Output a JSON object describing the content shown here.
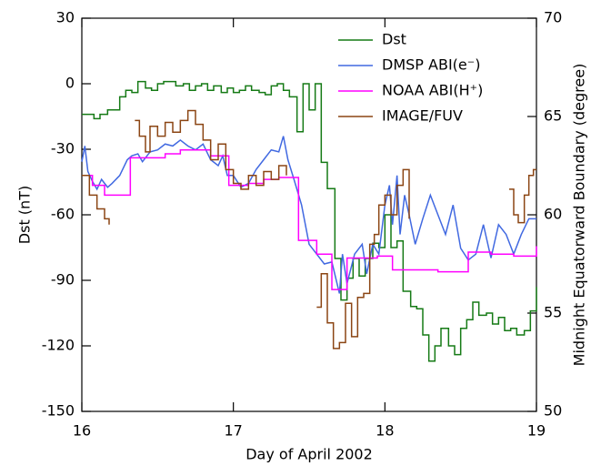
{
  "chart_data": {
    "type": "line",
    "x_label": "Day of April 2002",
    "y_label": "Dst (nT)",
    "y2_label": "Midnight Equatorward Boundary (degree)",
    "xlim": [
      16,
      19
    ],
    "xticks": [
      16,
      17,
      18,
      19
    ],
    "ylim": [
      -150,
      30
    ],
    "yticks": [
      -150,
      -120,
      -90,
      -60,
      -30,
      0,
      30
    ],
    "y2lim": [
      50,
      70
    ],
    "y2ticks": [
      50,
      55,
      60,
      65,
      70
    ],
    "legend": "upper right",
    "series": [
      {
        "name": "Dst",
        "color": "#157a15",
        "axis": "y",
        "step": true,
        "x": [
          16.0,
          16.08,
          16.12,
          16.17,
          16.21,
          16.25,
          16.29,
          16.33,
          16.37,
          16.42,
          16.46,
          16.5,
          16.54,
          16.58,
          16.62,
          16.67,
          16.71,
          16.75,
          16.79,
          16.83,
          16.87,
          16.92,
          16.96,
          17.0,
          17.04,
          17.08,
          17.12,
          17.17,
          17.21,
          17.25,
          17.29,
          17.33,
          17.37,
          17.42,
          17.46,
          17.5,
          17.54,
          17.58,
          17.62,
          17.67,
          17.71,
          17.75,
          17.79,
          17.83,
          17.87,
          17.92,
          17.96,
          18.0,
          18.04,
          18.08,
          18.12,
          18.17,
          18.21,
          18.25,
          18.29,
          18.33,
          18.37,
          18.42,
          18.46,
          18.5,
          18.54,
          18.58,
          18.62,
          18.67,
          18.71,
          18.75,
          18.79,
          18.83,
          18.87,
          18.92,
          18.96,
          19.0
        ],
        "values": [
          -14,
          -16,
          -14,
          -12,
          -12,
          -6,
          -3,
          -4,
          1,
          -2,
          -3,
          0,
          1,
          1,
          -1,
          0,
          -3,
          -1,
          0,
          -3,
          -1,
          -4,
          -2,
          -4,
          -3,
          -1,
          -3,
          -4,
          -5,
          -1,
          0,
          -3,
          -6,
          -22,
          0,
          -12,
          0,
          -36,
          -48,
          -80,
          -99,
          -89,
          -80,
          -88,
          -80,
          -73,
          -75,
          -60,
          -75,
          -72,
          -95,
          -102,
          -103,
          -115,
          -127,
          -120,
          -112,
          -120,
          -124,
          -112,
          -108,
          -100,
          -106,
          -105,
          -110,
          -107,
          -113,
          -112,
          -115,
          -113,
          -104,
          -93
        ]
      },
      {
        "name": "DMSP ABI(e⁻)",
        "color": "#4169e1",
        "axis": "y2",
        "step": false,
        "x": [
          16.0,
          16.02,
          16.04,
          16.07,
          16.1,
          16.13,
          16.17,
          16.2,
          16.25,
          16.3,
          16.33,
          16.37,
          16.4,
          16.45,
          16.5,
          16.55,
          16.6,
          16.65,
          16.7,
          16.75,
          16.8,
          16.85,
          16.9,
          16.93,
          16.96,
          17.0,
          17.05,
          17.1,
          17.15,
          17.2,
          17.25,
          17.3,
          17.33,
          17.36,
          17.4,
          17.45,
          17.5,
          17.55,
          17.6,
          17.65,
          17.7,
          17.72,
          17.75,
          17.8,
          17.85,
          17.88,
          17.92,
          17.96,
          18.0,
          18.03,
          18.05,
          18.08,
          18.1,
          18.13,
          18.16,
          18.2,
          18.25,
          18.3,
          18.35,
          18.4,
          18.45,
          18.5,
          18.55,
          18.6,
          18.65,
          18.7,
          18.75,
          18.8,
          18.85,
          18.9,
          18.95,
          19.0
        ],
        "values": [
          62.7,
          63.5,
          62.2,
          61.7,
          61.3,
          61.8,
          61.4,
          61.6,
          62.0,
          62.8,
          63.0,
          63.1,
          62.7,
          63.2,
          63.3,
          63.6,
          63.5,
          63.8,
          63.5,
          63.3,
          63.6,
          62.8,
          62.5,
          63.0,
          62.0,
          62.0,
          61.4,
          61.6,
          62.3,
          62.8,
          63.3,
          63.2,
          64.0,
          62.8,
          61.8,
          60.5,
          58.5,
          58.0,
          57.5,
          57.6,
          56.0,
          58.0,
          56.5,
          58.0,
          58.5,
          57.0,
          58.5,
          58.0,
          60.5,
          61.5,
          59.5,
          62.0,
          59.0,
          61.0,
          60.0,
          58.5,
          59.8,
          61.0,
          60.0,
          59.0,
          60.5,
          58.3,
          57.7,
          58.0,
          59.5,
          57.8,
          59.5,
          59.0,
          58.0,
          59.0,
          59.8,
          59.8
        ]
      },
      {
        "name": "NOAA ABI(H⁺)",
        "color": "#ff00ff",
        "axis": "y2",
        "step": true,
        "x": [
          16.0,
          16.07,
          16.15,
          16.32,
          16.55,
          16.65,
          16.85,
          16.97,
          17.1,
          17.2,
          17.3,
          17.43,
          17.55,
          17.65,
          17.75,
          17.95,
          18.05,
          18.25,
          18.35,
          18.55,
          18.7,
          18.85,
          19.0
        ],
        "values": [
          62.0,
          61.5,
          61.0,
          62.9,
          63.1,
          63.3,
          63.0,
          61.5,
          61.6,
          61.8,
          61.9,
          58.7,
          58.0,
          56.2,
          57.8,
          57.9,
          57.2,
          57.2,
          57.1,
          58.1,
          58.0,
          57.9,
          58.4
        ]
      },
      {
        "name": "IMAGE/FUV",
        "color": "#8b4513",
        "axis": "y2",
        "step": true,
        "x": [
          16.0,
          16.05,
          16.1,
          16.15,
          16.18,
          16.2,
          16.35,
          16.38,
          16.42,
          16.45,
          16.5,
          16.55,
          16.6,
          16.65,
          16.7,
          16.75,
          16.8,
          16.85,
          16.9,
          16.95,
          17.0,
          17.05,
          17.1,
          17.15,
          17.2,
          17.25,
          17.3,
          17.35,
          17.38,
          17.55,
          17.58,
          17.62,
          17.66,
          17.7,
          17.74,
          17.78,
          17.82,
          17.86,
          17.9,
          17.93,
          17.96,
          18.0,
          18.04,
          18.08,
          18.12,
          18.16,
          18.2,
          18.82,
          18.85,
          18.88,
          18.92,
          18.95,
          18.98,
          19.0
        ],
        "values": [
          62.0,
          61.0,
          60.3,
          59.8,
          59.5,
          null,
          64.8,
          64.0,
          63.2,
          64.5,
          64.0,
          64.7,
          64.2,
          64.8,
          65.3,
          64.6,
          63.8,
          62.8,
          63.6,
          62.3,
          61.6,
          61.3,
          62.0,
          61.5,
          62.2,
          61.8,
          62.5,
          62.0,
          null,
          55.3,
          57.0,
          54.5,
          53.2,
          53.5,
          55.5,
          53.8,
          55.8,
          56.0,
          58.5,
          59.0,
          60.5,
          61.0,
          60.0,
          61.5,
          62.3,
          59.8,
          null,
          61.3,
          60.0,
          59.6,
          61.0,
          62.0,
          62.3,
          62.3
        ]
      }
    ]
  }
}
